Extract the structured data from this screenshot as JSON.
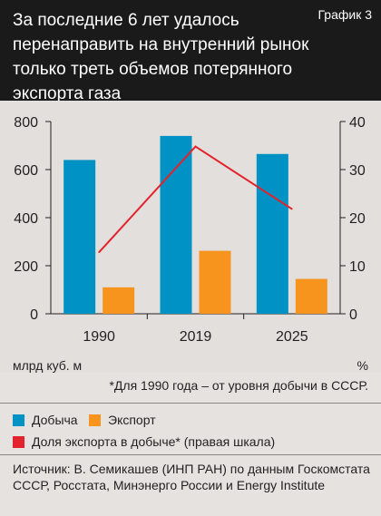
{
  "header": {
    "title": "За последние 6 лет удалось перенаправить на внутренний рынок только треть объемов потерянного экспорта газа",
    "tag": "График 3"
  },
  "chart_data": {
    "type": "bar",
    "categories": [
      "1990",
      "2019",
      "2025"
    ],
    "series": [
      {
        "name": "Добыча",
        "values": [
          640,
          740,
          665
        ],
        "color": "#0092c4",
        "axis": "left"
      },
      {
        "name": "Экспорт",
        "values": [
          110,
          262,
          145
        ],
        "color": "#f7941d",
        "axis": "left"
      }
    ],
    "line_series": {
      "name": "Доля экспорта в добыче* (правая шкала)",
      "values": [
        12.8,
        34.8,
        21.8
      ],
      "color": "#e3232c",
      "axis": "right"
    },
    "ylim_left": [
      0,
      800
    ],
    "yticks_left": [
      0,
      200,
      400,
      600,
      800
    ],
    "ylim_right": [
      0,
      40
    ],
    "yticks_right": [
      0,
      10,
      20,
      30,
      40
    ],
    "ylabel_left": "млрд куб. м",
    "ylabel_right": "%",
    "grid": false,
    "legend_position": "bottom"
  },
  "footnote": "*Для 1990 года – от уровня добычи в СССР.",
  "legend": {
    "item1": "Добыча",
    "item2": "Экспорт",
    "item3": "Доля экспорта в добыче* (правая шкала)",
    "color1": "#0092c4",
    "color2": "#f7941d",
    "color3": "#e3232c"
  },
  "source": "Источник: В. Семикашев (ИНП РАН) по данным Госкомстата СССР, Росстата, Минэнерго России и Energy Institute"
}
